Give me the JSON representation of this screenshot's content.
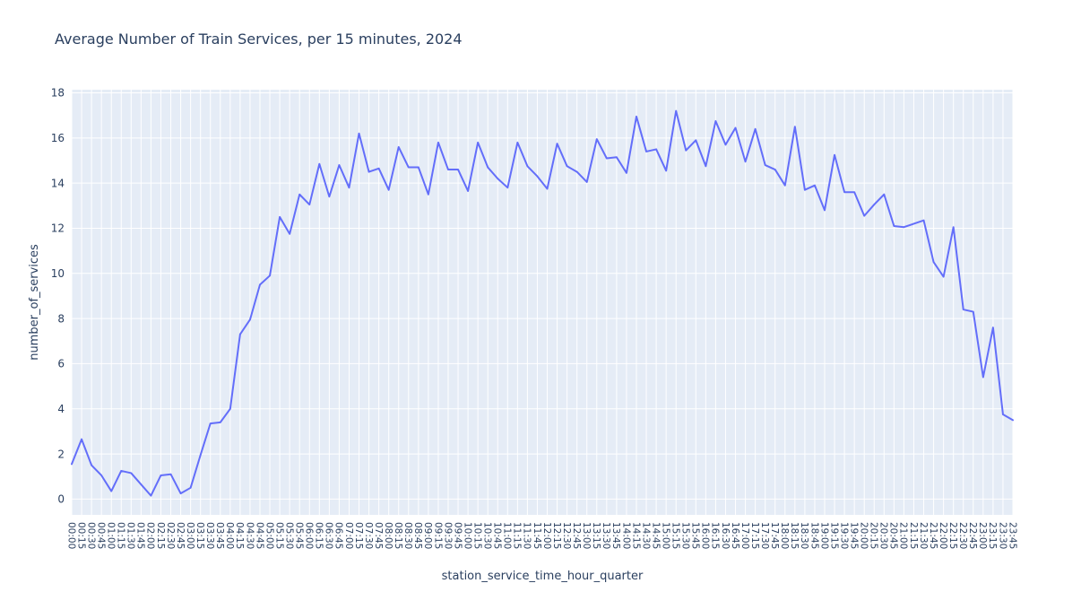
{
  "chart_data": {
    "type": "line",
    "title": "Average Number of Train Services, per 15 minutes, 2024",
    "xlabel": "station_service_time_hour_quarter",
    "ylabel": "number_of_services",
    "legend": false,
    "grid": true,
    "ylim": [
      -0.7,
      18.14
    ],
    "y_ticks": [
      0,
      2,
      4,
      6,
      8,
      10,
      12,
      14,
      16,
      18
    ],
    "x": [
      "00:00",
      "00:15",
      "00:30",
      "00:45",
      "01:00",
      "01:15",
      "01:30",
      "01:45",
      "02:00",
      "02:15",
      "02:30",
      "02:45",
      "03:00",
      "03:15",
      "03:30",
      "03:45",
      "04:00",
      "04:15",
      "04:30",
      "04:45",
      "05:00",
      "05:15",
      "05:30",
      "05:45",
      "06:00",
      "06:15",
      "06:30",
      "06:45",
      "07:00",
      "07:15",
      "07:30",
      "07:45",
      "08:00",
      "08:15",
      "08:30",
      "08:45",
      "09:00",
      "09:15",
      "09:30",
      "09:45",
      "10:00",
      "10:15",
      "10:30",
      "10:45",
      "11:00",
      "11:15",
      "11:30",
      "11:45",
      "12:00",
      "12:15",
      "12:30",
      "12:45",
      "13:00",
      "13:15",
      "13:30",
      "13:45",
      "14:00",
      "14:15",
      "14:30",
      "14:45",
      "15:00",
      "15:15",
      "15:30",
      "15:45",
      "16:00",
      "16:15",
      "16:30",
      "16:45",
      "17:00",
      "17:15",
      "17:30",
      "17:45",
      "18:00",
      "18:15",
      "18:30",
      "18:45",
      "19:00",
      "19:15",
      "19:30",
      "19:45",
      "20:00",
      "20:15",
      "20:30",
      "20:45",
      "21:00",
      "21:15",
      "21:30",
      "21:45",
      "22:00",
      "22:15",
      "22:30",
      "22:45",
      "23:00",
      "23:15",
      "23:30",
      "23:45"
    ],
    "values": [
      1.55,
      2.65,
      1.5,
      1.05,
      0.35,
      1.25,
      1.15,
      0.65,
      0.15,
      1.05,
      1.1,
      0.25,
      0.5,
      1.95,
      3.35,
      3.4,
      4.0,
      7.3,
      7.95,
      9.5,
      9.9,
      12.5,
      11.75,
      13.5,
      13.05,
      14.85,
      13.4,
      14.8,
      13.8,
      16.2,
      14.5,
      14.65,
      13.7,
      15.6,
      14.7,
      14.7,
      13.5,
      15.8,
      14.6,
      14.6,
      13.65,
      15.8,
      14.7,
      14.2,
      13.8,
      15.8,
      14.75,
      14.3,
      13.75,
      15.75,
      14.75,
      14.5,
      14.05,
      15.95,
      15.1,
      15.15,
      14.45,
      16.95,
      15.4,
      15.5,
      14.55,
      17.2,
      15.45,
      15.9,
      14.75,
      16.75,
      15.7,
      16.45,
      14.95,
      16.4,
      14.8,
      14.6,
      13.9,
      16.5,
      13.7,
      13.9,
      12.8,
      15.25,
      13.6,
      13.6,
      12.55,
      13.05,
      13.5,
      12.1,
      12.05,
      12.2,
      12.35,
      10.5,
      9.85,
      12.05,
      8.4,
      8.3,
      5.4,
      7.6,
      3.75,
      3.5
    ],
    "colors": {
      "line": "#636efa",
      "plot_bg": "#e5ecf6",
      "grid": "#ffffff",
      "text": "#2a3f5f",
      "paper": "#ffffff"
    }
  }
}
